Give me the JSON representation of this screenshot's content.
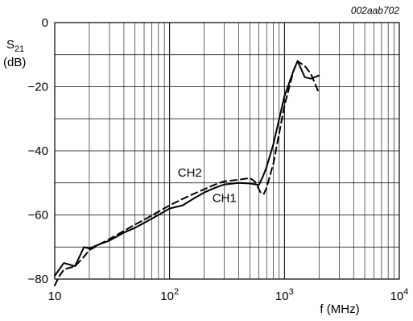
{
  "chart_data": {
    "type": "line",
    "code": "002aab702",
    "ylabel_main": "S",
    "ylabel_sub": "21",
    "ylabel_unit": "(dB)",
    "xlabel": "f (MHz)",
    "x_scale": "log",
    "xlim": [
      10,
      10000
    ],
    "ylim": [
      -80,
      0
    ],
    "grid": true,
    "y_ticks": [
      {
        "value": 0,
        "label": "0"
      },
      {
        "value": -20,
        "label": "−20"
      },
      {
        "value": -40,
        "label": "−40"
      },
      {
        "value": -60,
        "label": "−60"
      },
      {
        "value": -80,
        "label": "−80"
      }
    ],
    "x_ticks": [
      {
        "value": 10,
        "base": "10",
        "exp": ""
      },
      {
        "value": 100,
        "base": "10",
        "exp": "2"
      },
      {
        "value": 1000,
        "base": "10",
        "exp": "3"
      },
      {
        "value": 10000,
        "base": "10",
        "exp": "4"
      }
    ],
    "series": [
      {
        "name": "CH1",
        "style": "solid",
        "label_at": {
          "x": 300,
          "y": -56
        },
        "x": [
          10,
          12,
          15,
          18,
          20,
          25,
          30,
          40,
          50,
          60,
          80,
          100,
          130,
          160,
          200,
          250,
          300,
          400,
          500,
          560,
          600,
          650,
          700,
          800,
          1000,
          1200,
          1300,
          1500,
          1700,
          2000
        ],
        "y": [
          -79,
          -75,
          -76,
          -70,
          -70.5,
          -69,
          -68,
          -65.5,
          -64,
          -62.5,
          -60,
          -58,
          -57,
          -55,
          -53,
          -51.5,
          -50.5,
          -50,
          -50.2,
          -50.5,
          -50.6,
          -48,
          -45,
          -38,
          -23,
          -15,
          -12,
          -17,
          -17.5,
          -16.5
        ]
      },
      {
        "name": "CH2",
        "style": "dashed",
        "label_at": {
          "x": 150,
          "y": -48
        },
        "x": [
          10,
          11,
          12,
          15,
          18,
          20,
          25,
          30,
          40,
          50,
          60,
          80,
          100,
          130,
          160,
          200,
          250,
          300,
          400,
          500,
          550,
          580,
          620,
          660,
          700,
          800,
          1000,
          1200,
          1300,
          1500,
          1700,
          2000
        ],
        "y": [
          -82,
          -79,
          -77,
          -76,
          -73,
          -71,
          -69,
          -67.5,
          -65,
          -63,
          -61.5,
          -59,
          -57,
          -55,
          -53.5,
          -52,
          -50.5,
          -49.5,
          -49,
          -48.5,
          -49.5,
          -51,
          -53,
          -53.5,
          -51.5,
          -44,
          -26,
          -15,
          -12,
          -13.5,
          -16,
          -22
        ]
      }
    ]
  }
}
